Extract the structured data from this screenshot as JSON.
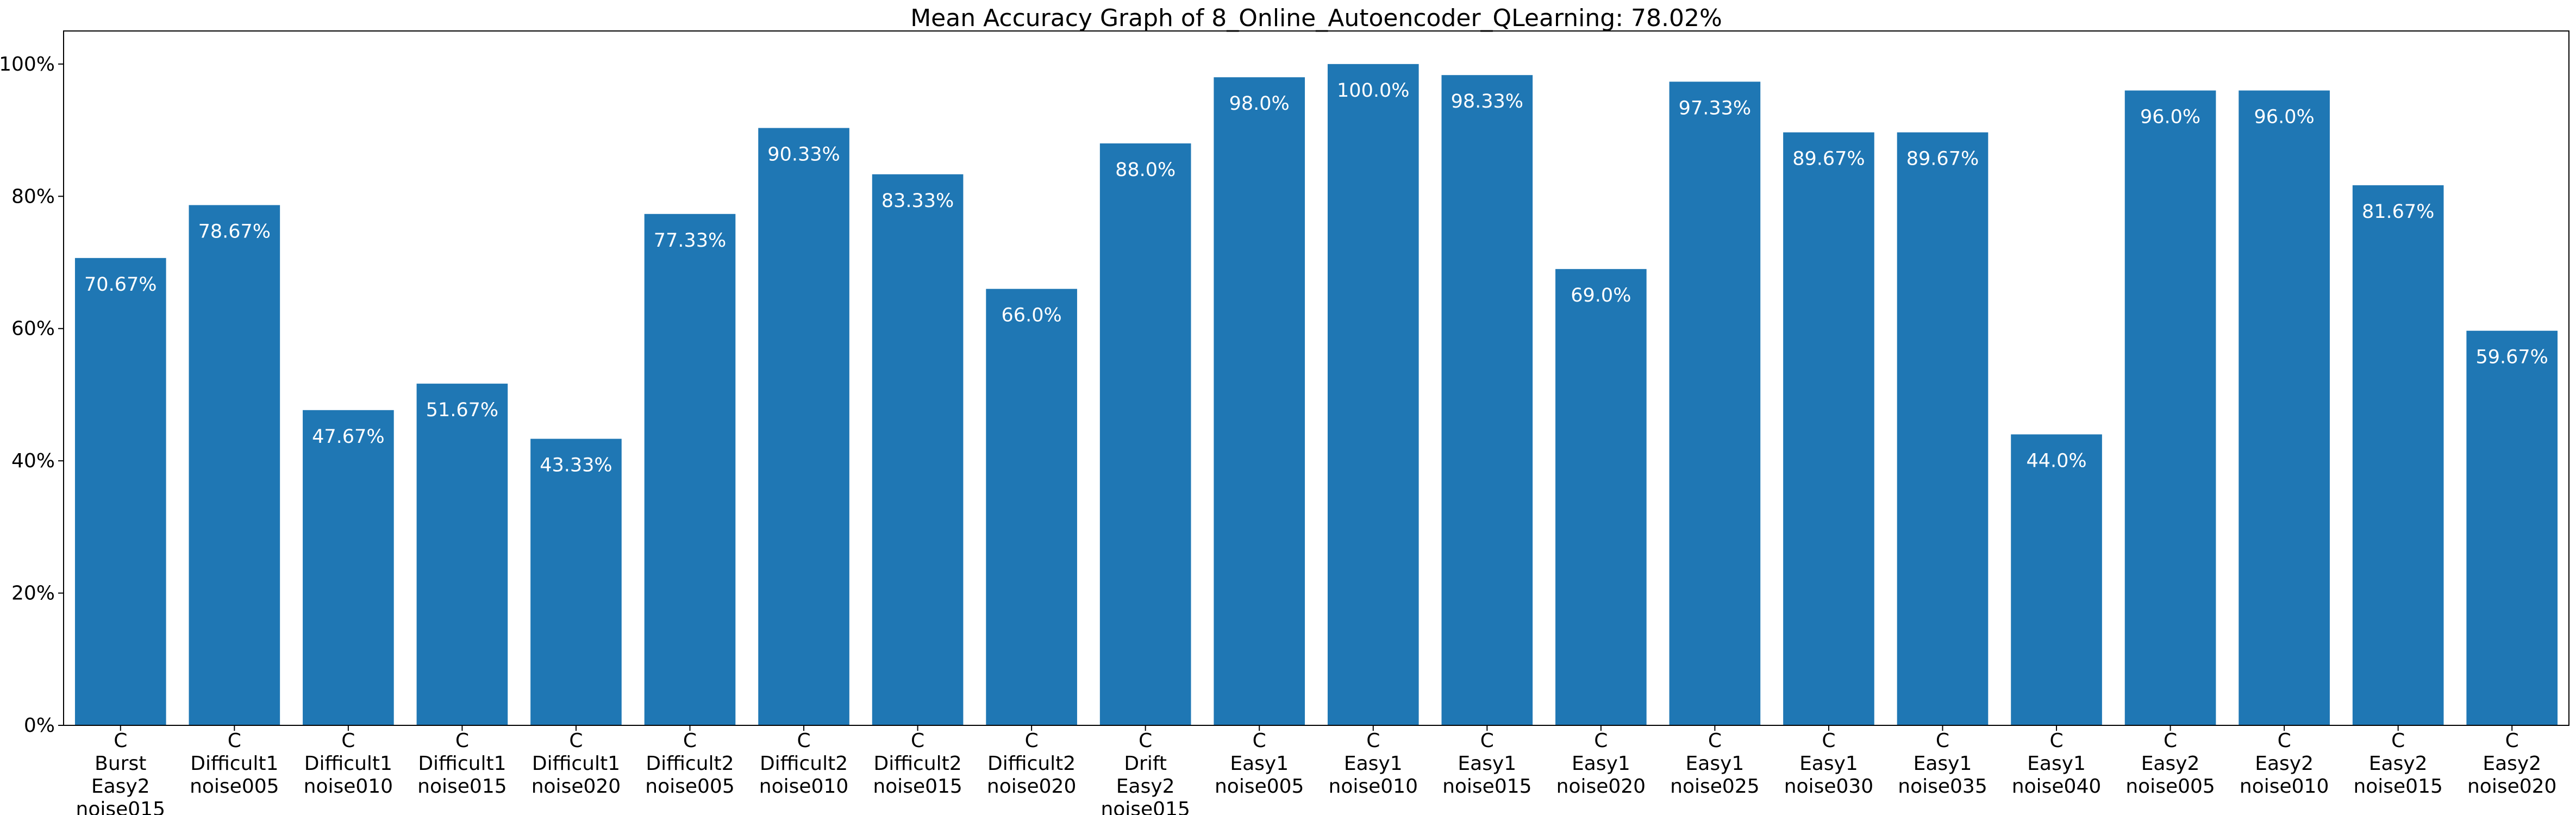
{
  "chart_data": {
    "type": "bar",
    "title": "Mean Accuracy Graph of 8_Online_Autoencoder_QLearning: 78.02%",
    "xlabel": "",
    "ylabel": "",
    "ylim": [
      0,
      105
    ],
    "yticks": [
      0,
      20,
      40,
      60,
      80,
      100
    ],
    "ytick_labels": [
      "0%",
      "20%",
      "40%",
      "60%",
      "80%",
      "100%"
    ],
    "grid": false,
    "bar_color": "#1f77b4",
    "categories": [
      [
        "C",
        "Burst",
        "Easy2",
        "noise015"
      ],
      [
        "C",
        "Difficult1",
        "noise005"
      ],
      [
        "C",
        "Difficult1",
        "noise010"
      ],
      [
        "C",
        "Difficult1",
        "noise015"
      ],
      [
        "C",
        "Difficult1",
        "noise020"
      ],
      [
        "C",
        "Difficult2",
        "noise005"
      ],
      [
        "C",
        "Difficult2",
        "noise010"
      ],
      [
        "C",
        "Difficult2",
        "noise015"
      ],
      [
        "C",
        "Difficult2",
        "noise020"
      ],
      [
        "C",
        "Drift",
        "Easy2",
        "noise015"
      ],
      [
        "C",
        "Easy1",
        "noise005"
      ],
      [
        "C",
        "Easy1",
        "noise010"
      ],
      [
        "C",
        "Easy1",
        "noise015"
      ],
      [
        "C",
        "Easy1",
        "noise020"
      ],
      [
        "C",
        "Easy1",
        "noise025"
      ],
      [
        "C",
        "Easy1",
        "noise030"
      ],
      [
        "C",
        "Easy1",
        "noise035"
      ],
      [
        "C",
        "Easy1",
        "noise040"
      ],
      [
        "C",
        "Easy2",
        "noise005"
      ],
      [
        "C",
        "Easy2",
        "noise010"
      ],
      [
        "C",
        "Easy2",
        "noise015"
      ],
      [
        "C",
        "Easy2",
        "noise020"
      ]
    ],
    "values": [
      70.67,
      78.67,
      47.67,
      51.67,
      43.33,
      77.33,
      90.33,
      83.33,
      66.0,
      88.0,
      98.0,
      100.0,
      98.33,
      69.0,
      97.33,
      89.67,
      89.67,
      44.0,
      96.0,
      96.0,
      81.67,
      59.67
    ],
    "value_labels": [
      "70.67%",
      "78.67%",
      "47.67%",
      "51.67%",
      "43.33%",
      "77.33%",
      "90.33%",
      "83.33%",
      "66.0%",
      "88.0%",
      "98.0%",
      "100.0%",
      "98.33%",
      "69.0%",
      "97.33%",
      "89.67%",
      "89.67%",
      "44.0%",
      "96.0%",
      "96.0%",
      "81.67%",
      "59.67%"
    ]
  }
}
